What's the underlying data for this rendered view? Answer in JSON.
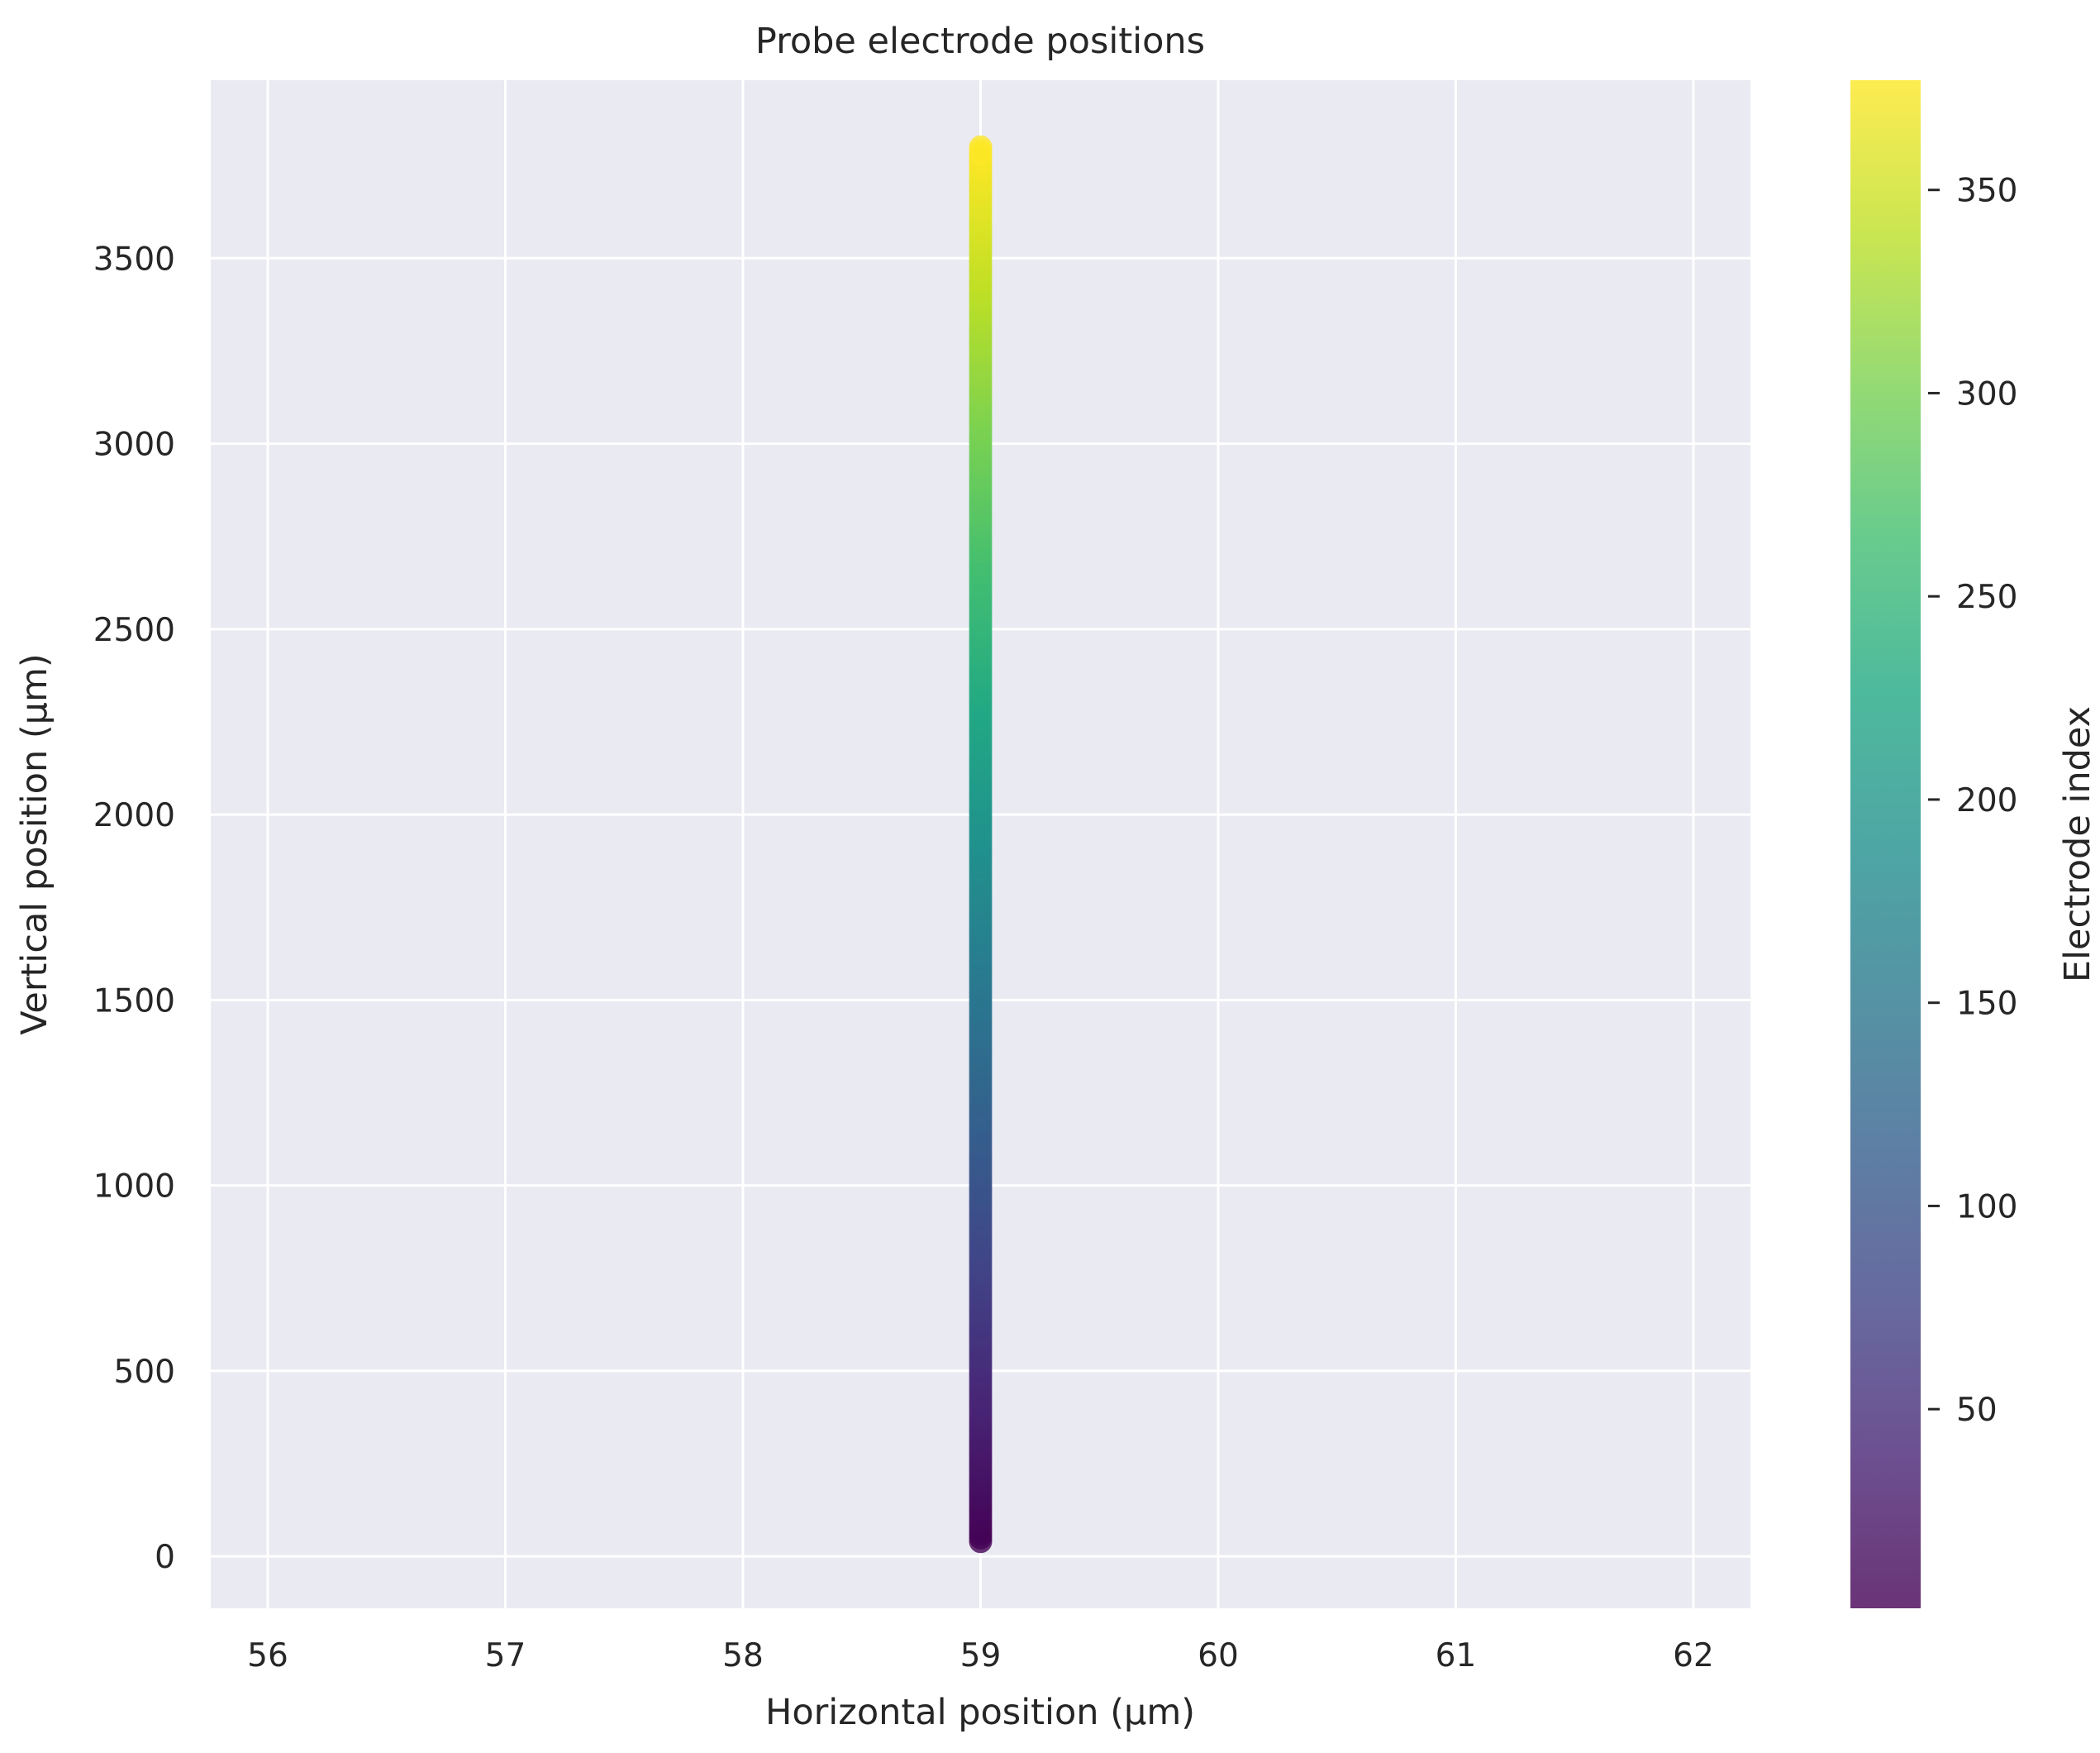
{
  "chart_data": {
    "type": "scatter",
    "title": "Probe electrode positions",
    "xlabel": "Horizontal position (µm)",
    "ylabel": "Vertical position (µm)",
    "xlim": [
      55.76,
      62.24
    ],
    "ylim": [
      -140,
      3980
    ],
    "xticks": [
      56,
      57,
      58,
      59,
      60,
      61,
      62
    ],
    "yticks": [
      0,
      500,
      1000,
      1500,
      2000,
      2500,
      3000,
      3500
    ],
    "grid": true,
    "colormap": "viridis",
    "marker_alpha": 0.8,
    "series": [
      {
        "x_constant": 59,
        "y_start": 40,
        "y_step": 10,
        "count": 377,
        "c_start": 1,
        "c_step": 1
      }
    ],
    "colorbar": {
      "label": "Electrode index",
      "range": [
        1,
        377
      ],
      "ticks": [
        50,
        100,
        150,
        200,
        250,
        300,
        350
      ]
    }
  },
  "colors": {
    "plot_background": "#EAEAF2",
    "grid": "#FFFFFF",
    "text": "#262626"
  }
}
